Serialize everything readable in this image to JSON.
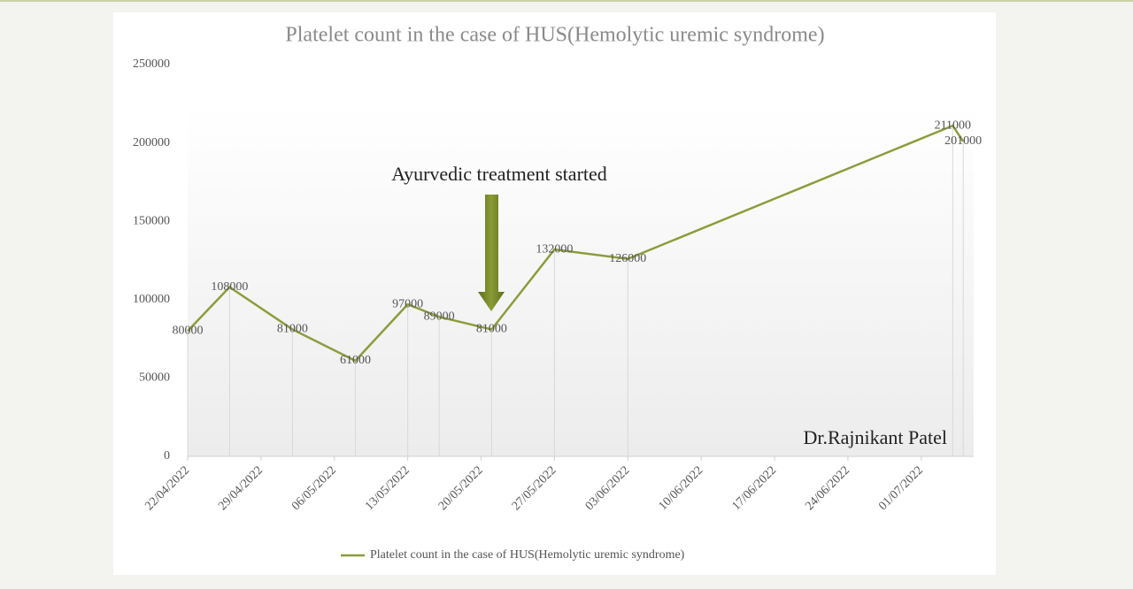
{
  "chart_data": {
    "type": "line",
    "title": "Platelet count in the case of HUS(Hemolytic uremic syndrome)",
    "x": [
      "2022-04-22",
      "2022-04-26",
      "2022-05-02",
      "2022-05-08",
      "2022-05-13",
      "2022-05-16",
      "2022-05-21",
      "2022-05-27",
      "2022-06-03",
      "2022-07-04",
      "2022-07-05"
    ],
    "series": [
      {
        "name": "Platelet count in the case of HUS(Hemolytic uremic syndrome)",
        "color": "#8c9c3c",
        "values": [
          80000,
          108000,
          81000,
          61000,
          97000,
          89000,
          81000,
          132000,
          126000,
          211000,
          201000
        ]
      }
    ],
    "xlim": [
      "2022-04-22",
      "2022-07-06"
    ],
    "xticks": [
      {
        "value": "2022-04-22",
        "label": "22/04/2022"
      },
      {
        "value": "2022-04-29",
        "label": "29/04/2022"
      },
      {
        "value": "2022-05-06",
        "label": "06/05/2022"
      },
      {
        "value": "2022-05-13",
        "label": "13/05/2022"
      },
      {
        "value": "2022-05-20",
        "label": "20/05/2022"
      },
      {
        "value": "2022-05-27",
        "label": "27/05/2022"
      },
      {
        "value": "2022-06-03",
        "label": "03/06/2022"
      },
      {
        "value": "2022-06-10",
        "label": "10/06/2022"
      },
      {
        "value": "2022-06-17",
        "label": "17/06/2022"
      },
      {
        "value": "2022-06-24",
        "label": "24/06/2022"
      },
      {
        "value": "2022-07-01",
        "label": "01/07/2022"
      }
    ],
    "ylim": [
      0,
      250000
    ],
    "yticks": [
      0,
      50000,
      100000,
      150000,
      200000,
      250000
    ],
    "annotations": [
      "Ayurvedic treatment started",
      "Dr.Rajnikant Patel"
    ],
    "legend": "bottom"
  }
}
